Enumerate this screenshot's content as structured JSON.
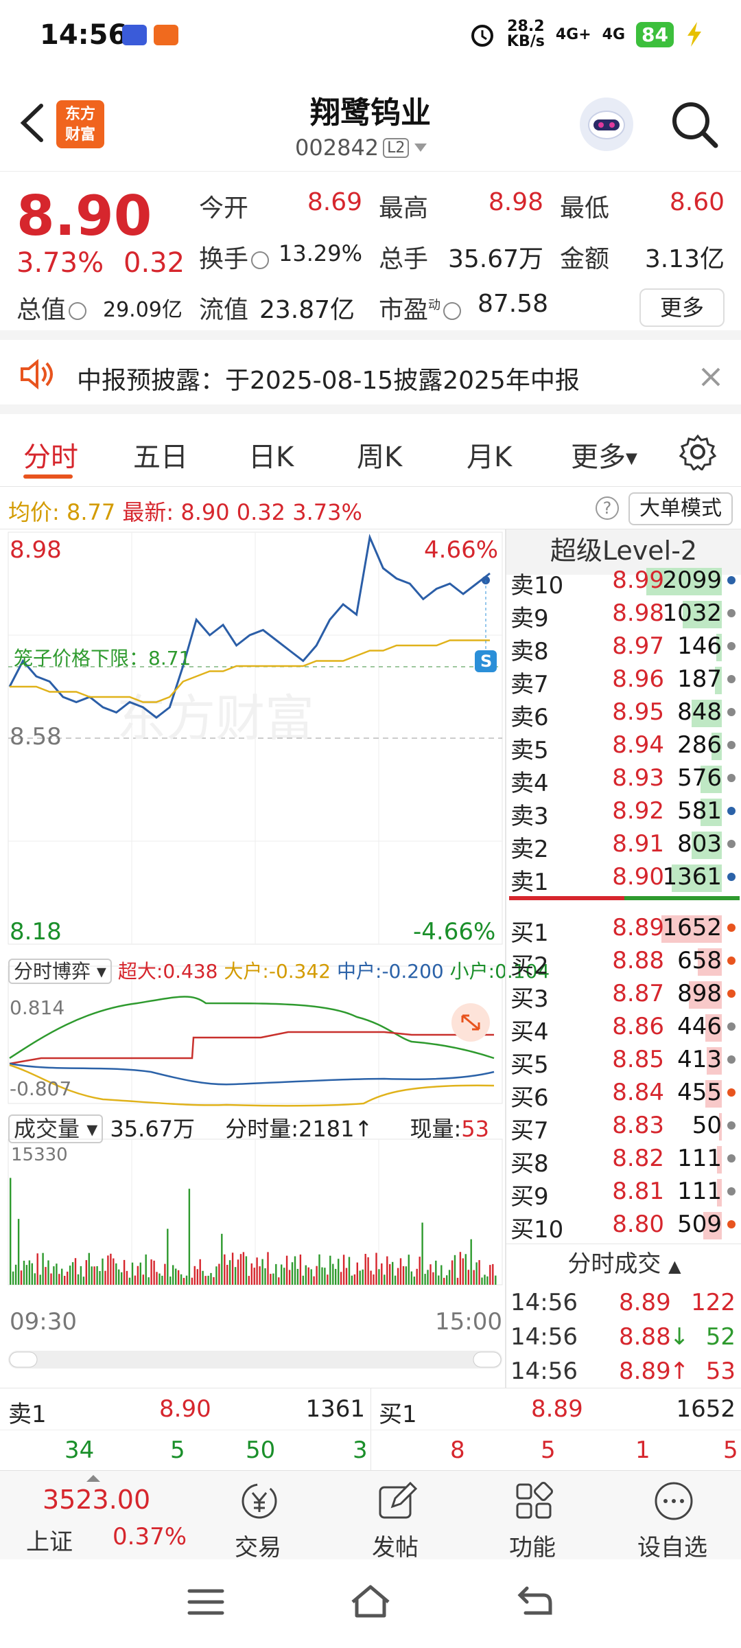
{
  "status_bar": {
    "time": "14:56",
    "speed": "28.2",
    "speed_unit": "KB/s",
    "net1": "4G+",
    "net2": "4G",
    "battery": "84"
  },
  "header": {
    "back_icon": "back-arrow-icon",
    "brand_line1": "东方",
    "brand_line2": "财富",
    "stock_name": "翔鹭钨业",
    "stock_code": "002842",
    "level_badge": "L2"
  },
  "quote": {
    "price": "8.90",
    "change_pct": "3.73%",
    "change": "0.32",
    "open_label": "今开",
    "open": "8.69",
    "high_label": "最高",
    "high": "8.98",
    "low_label": "最低",
    "low": "8.60",
    "turnover_label": "换手",
    "turnover": "13.29%",
    "volume_label": "总手",
    "volume": "35.67万",
    "amount_label": "金额",
    "amount": "3.13亿",
    "mcap_label": "总值",
    "mcap": "29.09亿",
    "float_label": "流值",
    "float_val": "23.87亿",
    "pe_label": "市盈",
    "pe_sup": "动",
    "pe": "87.58",
    "more_label": "更多"
  },
  "notice": {
    "text": "中报预披露：于2025-08-15披露2025年中报"
  },
  "tabs": [
    {
      "label": "分时"
    },
    {
      "label": "五日"
    },
    {
      "label": "日K"
    },
    {
      "label": "周K"
    },
    {
      "label": "月K"
    },
    {
      "label": "更多"
    }
  ],
  "avg_bar": {
    "avg_label": "均价:",
    "avg": "8.77",
    "latest_label": "最新:",
    "latest": "8.90",
    "chg": "0.32",
    "pct": "3.73%",
    "mode_btn": "大单模式"
  },
  "chart": {
    "price_top": "8.98",
    "pct_top": "4.66%",
    "price_mid": "8.58",
    "price_bot": "8.18",
    "pct_bot": "-4.66%",
    "limit_label": "笼子价格下限：8.71",
    "bo_label": "分时博弈",
    "super_lbl": "超大:",
    "super_val": "0.438",
    "big_lbl": "大户:",
    "big_val": "-0.342",
    "mid_lbl": "中户:",
    "mid_val": "-0.200",
    "small_lbl": "小户:",
    "small_val": "0.104",
    "bo_max": "0.814",
    "bo_min": "-0.807",
    "vol_label": "成交量",
    "vol_total": "35.67万",
    "vol_min_lbl": "分时量:",
    "vol_min": "2181",
    "vol_now_lbl": "现量:",
    "vol_now": "53",
    "vol_max": "15330",
    "time_start": "09:30",
    "time_end": "15:00"
  },
  "chart_data": {
    "type": "line",
    "title": "",
    "ylim": [
      8.18,
      8.98
    ],
    "prev_close": 8.58,
    "x_range": [
      "09:30",
      "15:00"
    ],
    "series": [
      {
        "color": "#2b5ea7",
        "values": [
          8.68,
          8.73,
          8.7,
          8.69,
          8.66,
          8.65,
          8.66,
          8.64,
          8.63,
          8.65,
          8.64,
          8.62,
          8.64,
          8.72,
          8.81,
          8.78,
          8.8,
          8.76,
          8.78,
          8.79,
          8.77,
          8.75,
          8.73,
          8.76,
          8.81,
          8.84,
          8.82,
          8.97,
          8.91,
          8.89,
          8.88,
          8.85,
          8.87,
          8.88,
          8.86,
          8.88,
          8.9
        ]
      },
      {
        "color": "#e0b21a",
        "values": [
          8.68,
          8.68,
          8.68,
          8.67,
          8.67,
          8.67,
          8.66,
          8.66,
          8.66,
          8.66,
          8.65,
          8.65,
          8.66,
          8.69,
          8.7,
          8.71,
          8.71,
          8.72,
          8.72,
          8.72,
          8.72,
          8.72,
          8.72,
          8.73,
          8.73,
          8.73,
          8.74,
          8.75,
          8.75,
          8.76,
          8.76,
          8.76,
          8.76,
          8.77,
          8.77,
          8.77,
          8.77
        ]
      }
    ]
  },
  "order_book": {
    "title": "超级Level-2",
    "asks": [
      {
        "name": "卖10",
        "price": "8.99",
        "vol": "2099",
        "pct": 1.0,
        "dot": "#2b62a8"
      },
      {
        "name": "卖9",
        "price": "8.98",
        "vol": "1032",
        "pct": 0.52,
        "dot": "#888"
      },
      {
        "name": "卖8",
        "price": "8.97",
        "vol": "146",
        "pct": 0.07,
        "dot": "#888"
      },
      {
        "name": "卖7",
        "price": "8.96",
        "vol": "187",
        "pct": 0.09,
        "dot": "#888"
      },
      {
        "name": "卖6",
        "price": "8.95",
        "vol": "848",
        "pct": 0.4,
        "dot": "#888"
      },
      {
        "name": "卖5",
        "price": "8.94",
        "vol": "286",
        "pct": 0.14,
        "dot": "#888"
      },
      {
        "name": "卖4",
        "price": "8.93",
        "vol": "576",
        "pct": 0.28,
        "dot": "#888"
      },
      {
        "name": "卖3",
        "price": "8.92",
        "vol": "581",
        "pct": 0.28,
        "dot": "#2b62a8"
      },
      {
        "name": "卖2",
        "price": "8.91",
        "vol": "803",
        "pct": 0.4,
        "dot": "#888"
      },
      {
        "name": "卖1",
        "price": "8.90",
        "vol": "1361",
        "pct": 0.66,
        "dot": "#2b62a8"
      }
    ],
    "bids": [
      {
        "name": "买1",
        "price": "8.89",
        "vol": "1652",
        "pct": 0.8,
        "dot": "#e8541e"
      },
      {
        "name": "买2",
        "price": "8.88",
        "vol": "658",
        "pct": 0.32,
        "dot": "#e8541e"
      },
      {
        "name": "买3",
        "price": "8.87",
        "vol": "898",
        "pct": 0.44,
        "dot": "#e8541e"
      },
      {
        "name": "买4",
        "price": "8.86",
        "vol": "446",
        "pct": 0.22,
        "dot": "#888"
      },
      {
        "name": "买5",
        "price": "8.85",
        "vol": "413",
        "pct": 0.2,
        "dot": "#888"
      },
      {
        "name": "买6",
        "price": "8.84",
        "vol": "455",
        "pct": 0.22,
        "dot": "#e8541e"
      },
      {
        "name": "买7",
        "price": "8.83",
        "vol": "50",
        "pct": 0.03,
        "dot": "#888"
      },
      {
        "name": "买8",
        "price": "8.82",
        "vol": "111",
        "pct": 0.06,
        "dot": "#888"
      },
      {
        "name": "买9",
        "price": "8.81",
        "vol": "111",
        "pct": 0.06,
        "dot": "#888"
      },
      {
        "name": "买10",
        "price": "8.80",
        "vol": "509",
        "pct": 0.25,
        "dot": "#e8541e"
      }
    ],
    "trades_title": "分时成交",
    "trades": [
      {
        "time": "14:56",
        "price": "8.89",
        "arrow": "",
        "vol": "122"
      },
      {
        "time": "14:56",
        "price": "8.88",
        "arrow": "↓",
        "vol": "52"
      },
      {
        "time": "14:56",
        "price": "8.89",
        "arrow": "↑",
        "vol": "53"
      }
    ]
  },
  "bottom_book": {
    "ask_label": "卖1",
    "ask_price": "8.90",
    "ask_vol": "1361",
    "bid_label": "买1",
    "bid_price": "8.89",
    "bid_vol": "1652",
    "ask_parts": [
      "34",
      "5",
      "50",
      "3"
    ],
    "bid_parts": [
      "8",
      "5",
      "1",
      "5"
    ]
  },
  "bottom_nav": {
    "index_value": "3523.00",
    "index_name": "上证",
    "index_pct": "0.37%",
    "trade": "交易",
    "post": "发帖",
    "func": "功能",
    "watch": "设自选"
  }
}
